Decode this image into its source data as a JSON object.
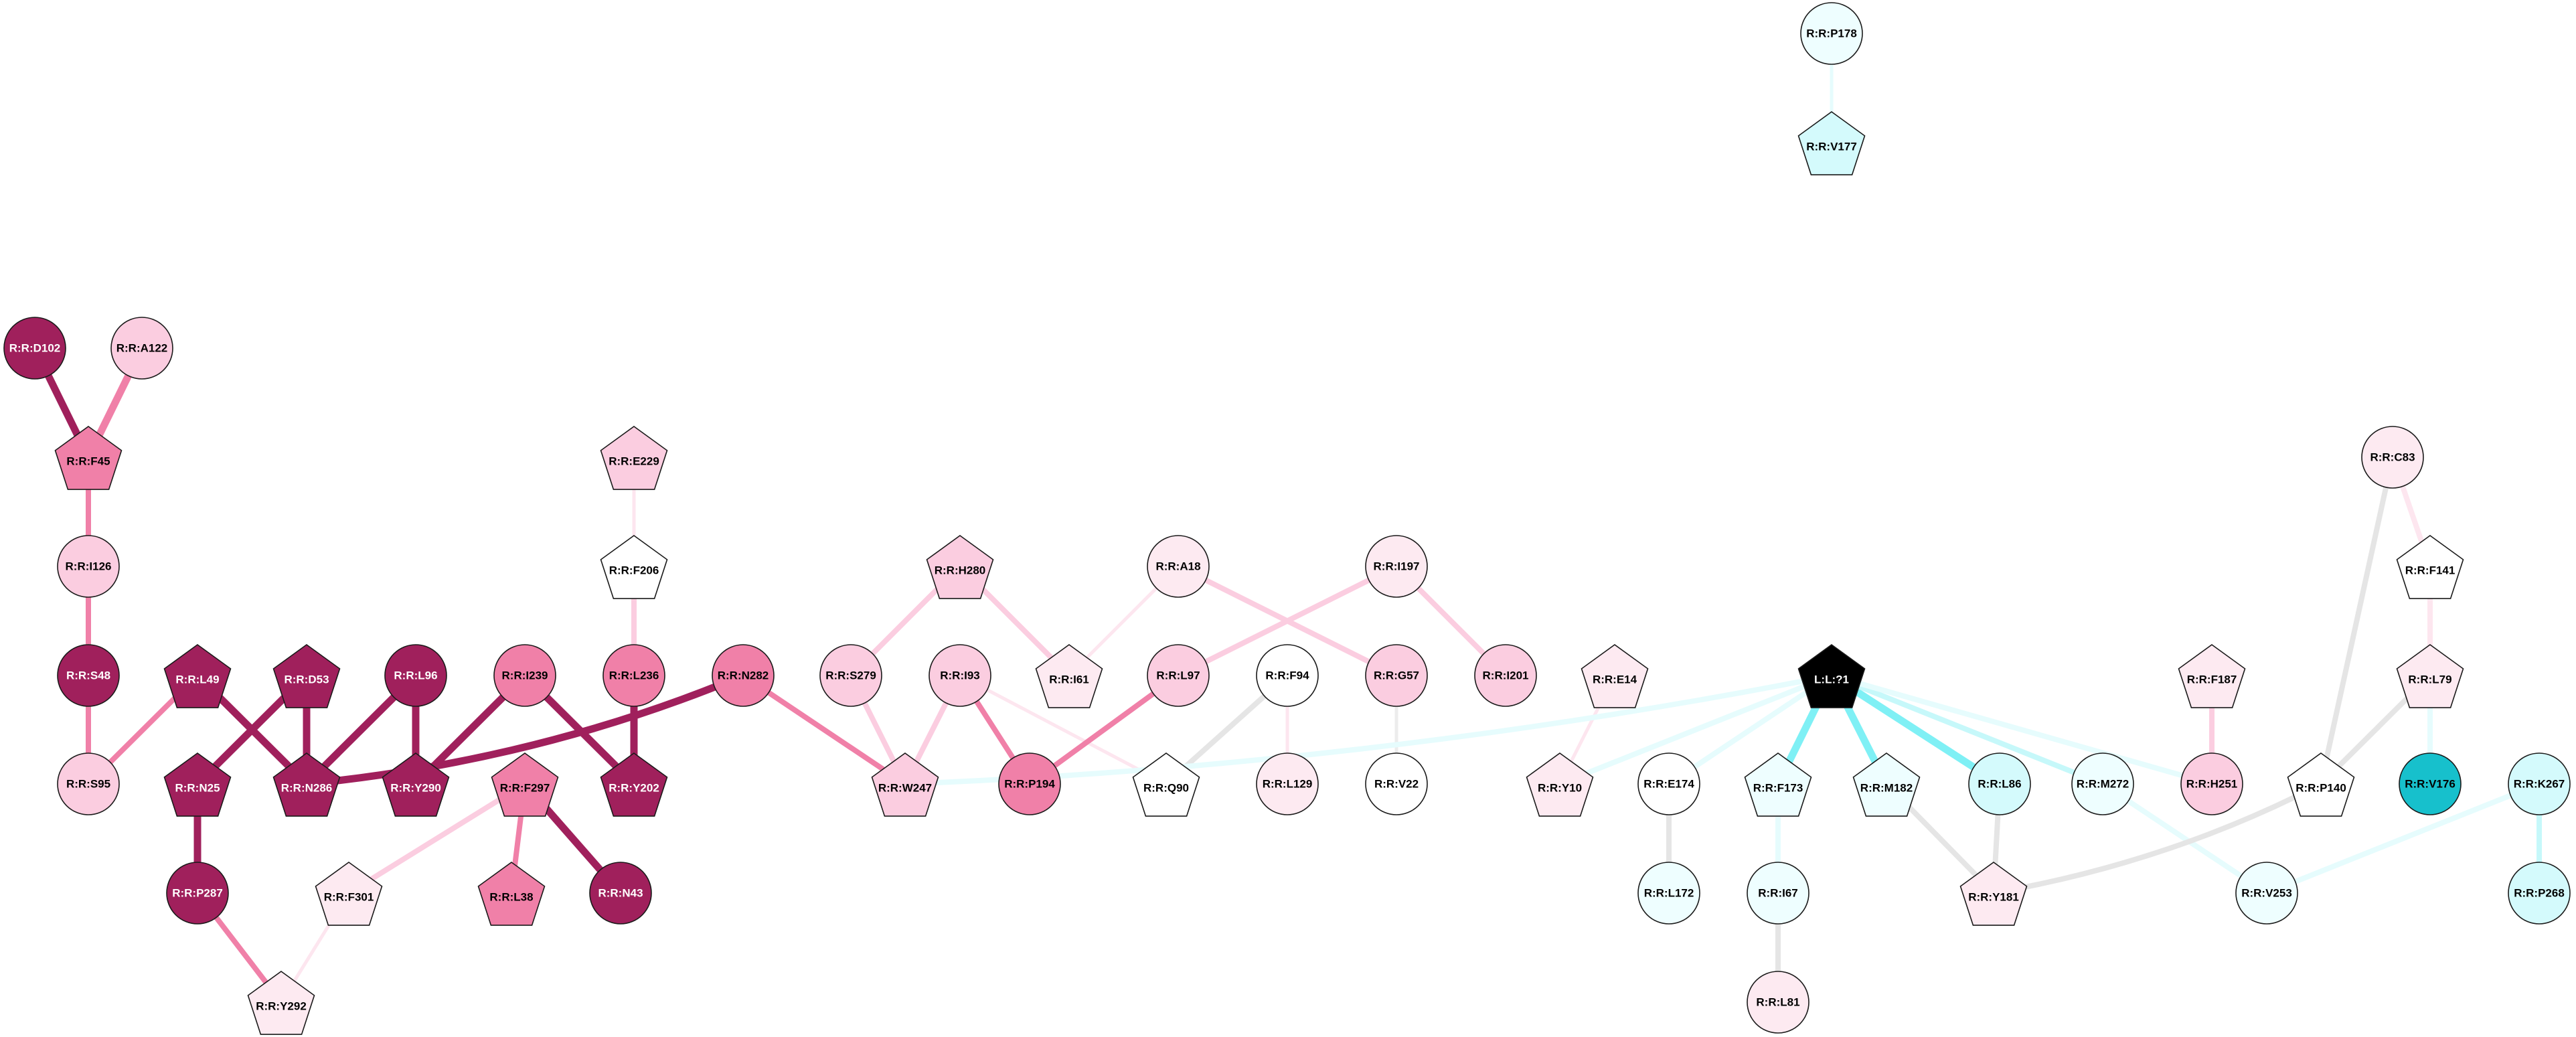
{
  "nodes": [
    {
      "id": "R:R:P178",
      "label": "R:R:P178",
      "shape": "circle",
      "fill": "#eefeff",
      "text": "#000000"
    },
    {
      "id": "R:R:V177",
      "label": "R:R:V177",
      "shape": "pentagon",
      "fill": "#d4fafc",
      "text": "#000000"
    },
    {
      "id": "R:R:D102",
      "label": "R:R:D102",
      "shape": "circle",
      "fill": "#a0205c",
      "text": "#ffffff"
    },
    {
      "id": "R:R:A122",
      "label": "R:R:A122",
      "shape": "circle",
      "fill": "#fbcde0",
      "text": "#000000"
    },
    {
      "id": "R:R:F45",
      "label": "R:R:F45",
      "shape": "pentagon",
      "fill": "#f080a8",
      "text": "#000000"
    },
    {
      "id": "R:R:E229",
      "label": "R:R:E229",
      "shape": "pentagon",
      "fill": "#fbcde0",
      "text": "#000000"
    },
    {
      "id": "R:R:C83",
      "label": "R:R:C83",
      "shape": "circle",
      "fill": "#fdeaf1",
      "text": "#000000"
    },
    {
      "id": "R:R:I126",
      "label": "R:R:I126",
      "shape": "circle",
      "fill": "#fbcde0",
      "text": "#000000"
    },
    {
      "id": "R:R:F206",
      "label": "R:R:F206",
      "shape": "pentagon",
      "fill": "#ffffff",
      "text": "#000000"
    },
    {
      "id": "R:R:H280",
      "label": "R:R:H280",
      "shape": "pentagon",
      "fill": "#fbcde0",
      "text": "#000000"
    },
    {
      "id": "R:R:A18",
      "label": "R:R:A18",
      "shape": "circle",
      "fill": "#fdeaf1",
      "text": "#000000"
    },
    {
      "id": "R:R:I197",
      "label": "R:R:I197",
      "shape": "circle",
      "fill": "#fdeaf1",
      "text": "#000000"
    },
    {
      "id": "R:R:F141",
      "label": "R:R:F141",
      "shape": "pentagon",
      "fill": "#ffffff",
      "text": "#000000"
    },
    {
      "id": "R:R:S48",
      "label": "R:R:S48",
      "shape": "circle",
      "fill": "#a0205c",
      "text": "#ffffff"
    },
    {
      "id": "R:R:L49",
      "label": "R:R:L49",
      "shape": "pentagon",
      "fill": "#a0205c",
      "text": "#ffffff"
    },
    {
      "id": "R:R:D53",
      "label": "R:R:D53",
      "shape": "pentagon",
      "fill": "#a0205c",
      "text": "#ffffff"
    },
    {
      "id": "R:R:L96",
      "label": "R:R:L96",
      "shape": "circle",
      "fill": "#a0205c",
      "text": "#ffffff"
    },
    {
      "id": "R:R:I239",
      "label": "R:R:I239",
      "shape": "circle",
      "fill": "#f080a8",
      "text": "#000000"
    },
    {
      "id": "R:R:L236",
      "label": "R:R:L236",
      "shape": "circle",
      "fill": "#f080a8",
      "text": "#000000"
    },
    {
      "id": "R:R:N282",
      "label": "R:R:N282",
      "shape": "circle",
      "fill": "#f080a8",
      "text": "#000000"
    },
    {
      "id": "R:R:S279",
      "label": "R:R:S279",
      "shape": "circle",
      "fill": "#fbcde0",
      "text": "#000000"
    },
    {
      "id": "R:R:I93",
      "label": "R:R:I93",
      "shape": "circle",
      "fill": "#fbcde0",
      "text": "#000000"
    },
    {
      "id": "R:R:I61",
      "label": "R:R:I61",
      "shape": "pentagon",
      "fill": "#fdeaf1",
      "text": "#000000"
    },
    {
      "id": "R:R:L97",
      "label": "R:R:L97",
      "shape": "circle",
      "fill": "#fbcde0",
      "text": "#000000"
    },
    {
      "id": "R:R:F94",
      "label": "R:R:F94",
      "shape": "circle",
      "fill": "#ffffff",
      "text": "#000000"
    },
    {
      "id": "R:R:G57",
      "label": "R:R:G57",
      "shape": "circle",
      "fill": "#fbcde0",
      "text": "#000000"
    },
    {
      "id": "R:R:I201",
      "label": "R:R:I201",
      "shape": "circle",
      "fill": "#fbcde0",
      "text": "#000000"
    },
    {
      "id": "R:R:E14",
      "label": "R:R:E14",
      "shape": "pentagon",
      "fill": "#fdeaf1",
      "text": "#000000"
    },
    {
      "id": "L:L:?1",
      "label": "L:L:?1",
      "shape": "pentagon",
      "fill": "#000000",
      "text": "#ffffff"
    },
    {
      "id": "R:R:F187",
      "label": "R:R:F187",
      "shape": "pentagon",
      "fill": "#fdeaf1",
      "text": "#000000"
    },
    {
      "id": "R:R:L79",
      "label": "R:R:L79",
      "shape": "pentagon",
      "fill": "#fdeaf1",
      "text": "#000000"
    },
    {
      "id": "R:R:S95",
      "label": "R:R:S95",
      "shape": "circle",
      "fill": "#fbcde0",
      "text": "#000000"
    },
    {
      "id": "R:R:N25",
      "label": "R:R:N25",
      "shape": "pentagon",
      "fill": "#a0205c",
      "text": "#ffffff"
    },
    {
      "id": "R:R:N286",
      "label": "R:R:N286",
      "shape": "pentagon",
      "fill": "#a0205c",
      "text": "#ffffff"
    },
    {
      "id": "R:R:Y290",
      "label": "R:R:Y290",
      "shape": "pentagon",
      "fill": "#a0205c",
      "text": "#ffffff"
    },
    {
      "id": "R:R:F297",
      "label": "R:R:F297",
      "shape": "pentagon",
      "fill": "#f080a8",
      "text": "#000000"
    },
    {
      "id": "R:R:Y202",
      "label": "R:R:Y202",
      "shape": "pentagon",
      "fill": "#a0205c",
      "text": "#ffffff"
    },
    {
      "id": "R:R:W247",
      "label": "R:R:W247",
      "shape": "pentagon",
      "fill": "#fbcde0",
      "text": "#000000"
    },
    {
      "id": "R:R:P194",
      "label": "R:R:P194",
      "shape": "circle",
      "fill": "#f080a8",
      "text": "#000000"
    },
    {
      "id": "R:R:Q90",
      "label": "R:R:Q90",
      "shape": "pentagon",
      "fill": "#ffffff",
      "text": "#000000"
    },
    {
      "id": "R:R:L129",
      "label": "R:R:L129",
      "shape": "circle",
      "fill": "#fdeaf1",
      "text": "#000000"
    },
    {
      "id": "R:R:V22",
      "label": "R:R:V22",
      "shape": "circle",
      "fill": "#ffffff",
      "text": "#000000"
    },
    {
      "id": "R:R:Y10",
      "label": "R:R:Y10",
      "shape": "pentagon",
      "fill": "#fdeaf1",
      "text": "#000000"
    },
    {
      "id": "R:R:E174",
      "label": "R:R:E174",
      "shape": "circle",
      "fill": "#ffffff",
      "text": "#000000"
    },
    {
      "id": "R:R:F173",
      "label": "R:R:F173",
      "shape": "pentagon",
      "fill": "#eefeff",
      "text": "#000000"
    },
    {
      "id": "R:R:M182",
      "label": "R:R:M182",
      "shape": "pentagon",
      "fill": "#eefeff",
      "text": "#000000"
    },
    {
      "id": "R:R:L86",
      "label": "R:R:L86",
      "shape": "circle",
      "fill": "#d4fafc",
      "text": "#000000"
    },
    {
      "id": "R:R:M272",
      "label": "R:R:M272",
      "shape": "circle",
      "fill": "#eefeff",
      "text": "#000000"
    },
    {
      "id": "R:R:H251",
      "label": "R:R:H251",
      "shape": "circle",
      "fill": "#fbcde0",
      "text": "#000000"
    },
    {
      "id": "R:R:P140",
      "label": "R:R:P140",
      "shape": "pentagon",
      "fill": "#ffffff",
      "text": "#000000"
    },
    {
      "id": "R:R:V176",
      "label": "R:R:V176",
      "shape": "circle",
      "fill": "#17c0cc",
      "text": "#000000"
    },
    {
      "id": "R:R:K267",
      "label": "R:R:K267",
      "shape": "circle",
      "fill": "#d4fafc",
      "text": "#000000"
    },
    {
      "id": "R:R:P287",
      "label": "R:R:P287",
      "shape": "circle",
      "fill": "#a0205c",
      "text": "#ffffff"
    },
    {
      "id": "R:R:F301",
      "label": "R:R:F301",
      "shape": "pentagon",
      "fill": "#fdeaf1",
      "text": "#000000"
    },
    {
      "id": "R:R:L38",
      "label": "R:R:L38",
      "shape": "pentagon",
      "fill": "#f080a8",
      "text": "#000000"
    },
    {
      "id": "R:R:N43",
      "label": "R:R:N43",
      "shape": "circle",
      "fill": "#a0205c",
      "text": "#ffffff"
    },
    {
      "id": "R:R:L172",
      "label": "R:R:L172",
      "shape": "circle",
      "fill": "#eefeff",
      "text": "#000000"
    },
    {
      "id": "R:R:I67",
      "label": "R:R:I67",
      "shape": "circle",
      "fill": "#eefeff",
      "text": "#000000"
    },
    {
      "id": "R:R:Y181",
      "label": "R:R:Y181",
      "shape": "pentagon",
      "fill": "#fdeaf1",
      "text": "#000000"
    },
    {
      "id": "R:R:V253",
      "label": "R:R:V253",
      "shape": "circle",
      "fill": "#eefeff",
      "text": "#000000"
    },
    {
      "id": "R:R:P268",
      "label": "R:R:P268",
      "shape": "circle",
      "fill": "#d4fafc",
      "text": "#000000"
    },
    {
      "id": "R:R:Y292",
      "label": "R:R:Y292",
      "shape": "pentagon",
      "fill": "#fdeaf1",
      "text": "#000000"
    },
    {
      "id": "R:R:L81",
      "label": "R:R:L81",
      "shape": "circle",
      "fill": "#fdeaf1",
      "text": "#000000"
    }
  ],
  "edges": [
    {
      "from": "R:R:P178",
      "to": "R:R:V177",
      "color": "#e6fcfd",
      "weight": "thin"
    },
    {
      "from": "R:R:D102",
      "to": "R:R:F45",
      "color": "#a0205c",
      "weight": "thick"
    },
    {
      "from": "R:R:A122",
      "to": "R:R:F45",
      "color": "#f080a8",
      "weight": "thick"
    },
    {
      "from": "R:R:F45",
      "to": "R:R:I126",
      "color": "#f080a8",
      "weight": "medium"
    },
    {
      "from": "R:R:I126",
      "to": "R:R:S48",
      "color": "#f080a8",
      "weight": "medium"
    },
    {
      "from": "R:R:S48",
      "to": "R:R:S95",
      "color": "#f080a8",
      "weight": "medium"
    },
    {
      "from": "R:R:L49",
      "to": "R:R:S95",
      "color": "#f080a8",
      "weight": "medium"
    },
    {
      "from": "R:R:L49",
      "to": "R:R:N286",
      "color": "#a0205c",
      "weight": "thick"
    },
    {
      "from": "R:R:D53",
      "to": "R:R:N25",
      "color": "#a0205c",
      "weight": "thick"
    },
    {
      "from": "R:R:D53",
      "to": "R:R:N286",
      "color": "#a0205c",
      "weight": "thick"
    },
    {
      "from": "R:R:L96",
      "to": "R:R:N286",
      "color": "#a0205c",
      "weight": "thick"
    },
    {
      "from": "R:R:L96",
      "to": "R:R:Y290",
      "color": "#a0205c",
      "weight": "thick"
    },
    {
      "from": "R:R:I239",
      "to": "R:R:Y290",
      "color": "#a0205c",
      "weight": "thick"
    },
    {
      "from": "R:R:I239",
      "to": "R:R:Y202",
      "color": "#a0205c",
      "weight": "thick"
    },
    {
      "from": "R:R:N282",
      "to": "R:R:N286",
      "color": "#a0205c",
      "weight": "thick",
      "curve": "arc"
    },
    {
      "from": "R:R:N282",
      "to": "R:R:W247",
      "color": "#f080a8",
      "weight": "medium"
    },
    {
      "from": "R:R:E229",
      "to": "R:R:F206",
      "color": "#fde6ef",
      "weight": "thin"
    },
    {
      "from": "R:R:F206",
      "to": "R:R:L236",
      "color": "#fbcde0",
      "weight": "medium"
    },
    {
      "from": "R:R:L236",
      "to": "R:R:Y202",
      "color": "#a0205c",
      "weight": "thick"
    },
    {
      "from": "R:R:N25",
      "to": "R:R:P287",
      "color": "#a0205c",
      "weight": "thick"
    },
    {
      "from": "R:R:P287",
      "to": "R:R:Y292",
      "color": "#f080a8",
      "weight": "medium"
    },
    {
      "from": "R:R:F301",
      "to": "R:R:Y292",
      "color": "#fde6ef",
      "weight": "thin"
    },
    {
      "from": "R:R:F297",
      "to": "R:R:F301",
      "color": "#fbcde0",
      "weight": "medium"
    },
    {
      "from": "R:R:F297",
      "to": "R:R:L38",
      "color": "#f080a8",
      "weight": "medium"
    },
    {
      "from": "R:R:F297",
      "to": "R:R:N43",
      "color": "#a0205c",
      "weight": "thick"
    },
    {
      "from": "R:R:H280",
      "to": "R:R:S279",
      "color": "#fbcde0",
      "weight": "medium"
    },
    {
      "from": "R:R:H280",
      "to": "R:R:I61",
      "color": "#fbcde0",
      "weight": "medium"
    },
    {
      "from": "R:R:A18",
      "to": "R:R:I61",
      "color": "#fde6ef",
      "weight": "thin"
    },
    {
      "from": "R:R:S279",
      "to": "R:R:W247",
      "color": "#fbcde0",
      "weight": "medium"
    },
    {
      "from": "R:R:I93",
      "to": "R:R:W247",
      "color": "#fbcde0",
      "weight": "medium"
    },
    {
      "from": "R:R:I93",
      "to": "R:R:P194",
      "color": "#f080a8",
      "weight": "medium"
    },
    {
      "from": "R:R:I93",
      "to": "R:R:Q90",
      "color": "#fde6ef",
      "weight": "thin"
    },
    {
      "from": "R:R:L97",
      "to": "R:R:P194",
      "color": "#f080a8",
      "weight": "medium"
    },
    {
      "from": "R:R:I197",
      "to": "R:R:L97",
      "color": "#fbcde0",
      "weight": "medium"
    },
    {
      "from": "R:R:A18",
      "to": "R:R:G57",
      "color": "#fbcde0",
      "weight": "medium"
    },
    {
      "from": "R:R:I197",
      "to": "R:R:I201",
      "color": "#fbcde0",
      "weight": "medium"
    },
    {
      "from": "R:R:F94",
      "to": "R:R:Q90",
      "color": "#e5e5e5",
      "weight": "medium"
    },
    {
      "from": "R:R:F94",
      "to": "R:R:L129",
      "color": "#fde6ef",
      "weight": "thin"
    },
    {
      "from": "R:R:G57",
      "to": "R:R:V22",
      "color": "#ececec",
      "weight": "thin"
    },
    {
      "from": "R:R:E14",
      "to": "R:R:Y10",
      "color": "#fde6ef",
      "weight": "thin"
    },
    {
      "from": "L:L:?1",
      "to": "R:R:W247",
      "color": "#e6fcfd",
      "weight": "medium",
      "curve": "arc"
    },
    {
      "from": "L:L:?1",
      "to": "R:R:Y10",
      "color": "#e6fcfd",
      "weight": "medium"
    },
    {
      "from": "L:L:?1",
      "to": "R:R:E174",
      "color": "#e6fcfd",
      "weight": "medium"
    },
    {
      "from": "L:L:?1",
      "to": "R:R:F173",
      "color": "#7ff0f5",
      "weight": "thick"
    },
    {
      "from": "L:L:?1",
      "to": "R:R:M182",
      "color": "#7ff0f5",
      "weight": "thick"
    },
    {
      "from": "L:L:?1",
      "to": "R:R:L86",
      "color": "#7ff0f5",
      "weight": "thick"
    },
    {
      "from": "L:L:?1",
      "to": "R:R:M272",
      "color": "#c6f8fa",
      "weight": "medium"
    },
    {
      "from": "L:L:?1",
      "to": "R:R:H251",
      "color": "#e6fcfd",
      "weight": "medium"
    },
    {
      "from": "R:R:E174",
      "to": "R:R:L172",
      "color": "#e5e5e5",
      "weight": "medium"
    },
    {
      "from": "R:R:F173",
      "to": "R:R:I67",
      "color": "#e6fcfd",
      "weight": "medium"
    },
    {
      "from": "R:R:I67",
      "to": "R:R:L81",
      "color": "#e5e5e5",
      "weight": "medium"
    },
    {
      "from": "R:R:M182",
      "to": "R:R:Y181",
      "color": "#e5e5e5",
      "weight": "medium"
    },
    {
      "from": "R:R:L86",
      "to": "R:R:Y181",
      "color": "#e5e5e5",
      "weight": "medium"
    },
    {
      "from": "R:R:M272",
      "to": "R:R:V253",
      "color": "#e6fcfd",
      "weight": "medium"
    },
    {
      "from": "R:R:F187",
      "to": "R:R:H251",
      "color": "#fbcde0",
      "weight": "medium"
    },
    {
      "from": "R:R:C83",
      "to": "R:R:F141",
      "color": "#fde6ef",
      "weight": "medium"
    },
    {
      "from": "R:R:C83",
      "to": "R:R:P140",
      "color": "#e5e5e5",
      "weight": "medium"
    },
    {
      "from": "R:R:F141",
      "to": "R:R:L79",
      "color": "#fde6ef",
      "weight": "medium"
    },
    {
      "from": "R:R:L79",
      "to": "R:R:P140",
      "color": "#e5e5e5",
      "weight": "medium"
    },
    {
      "from": "R:R:L79",
      "to": "R:R:V176",
      "color": "#e6fcfd",
      "weight": "medium"
    },
    {
      "from": "R:R:P140",
      "to": "R:R:Y181",
      "color": "#e5e5e5",
      "weight": "medium",
      "curve": "arc"
    },
    {
      "from": "R:R:K267",
      "to": "R:R:V253",
      "color": "#e6fcfd",
      "weight": "medium"
    },
    {
      "from": "R:R:K267",
      "to": "R:R:P268",
      "color": "#c6f8fa",
      "weight": "medium"
    }
  ]
}
